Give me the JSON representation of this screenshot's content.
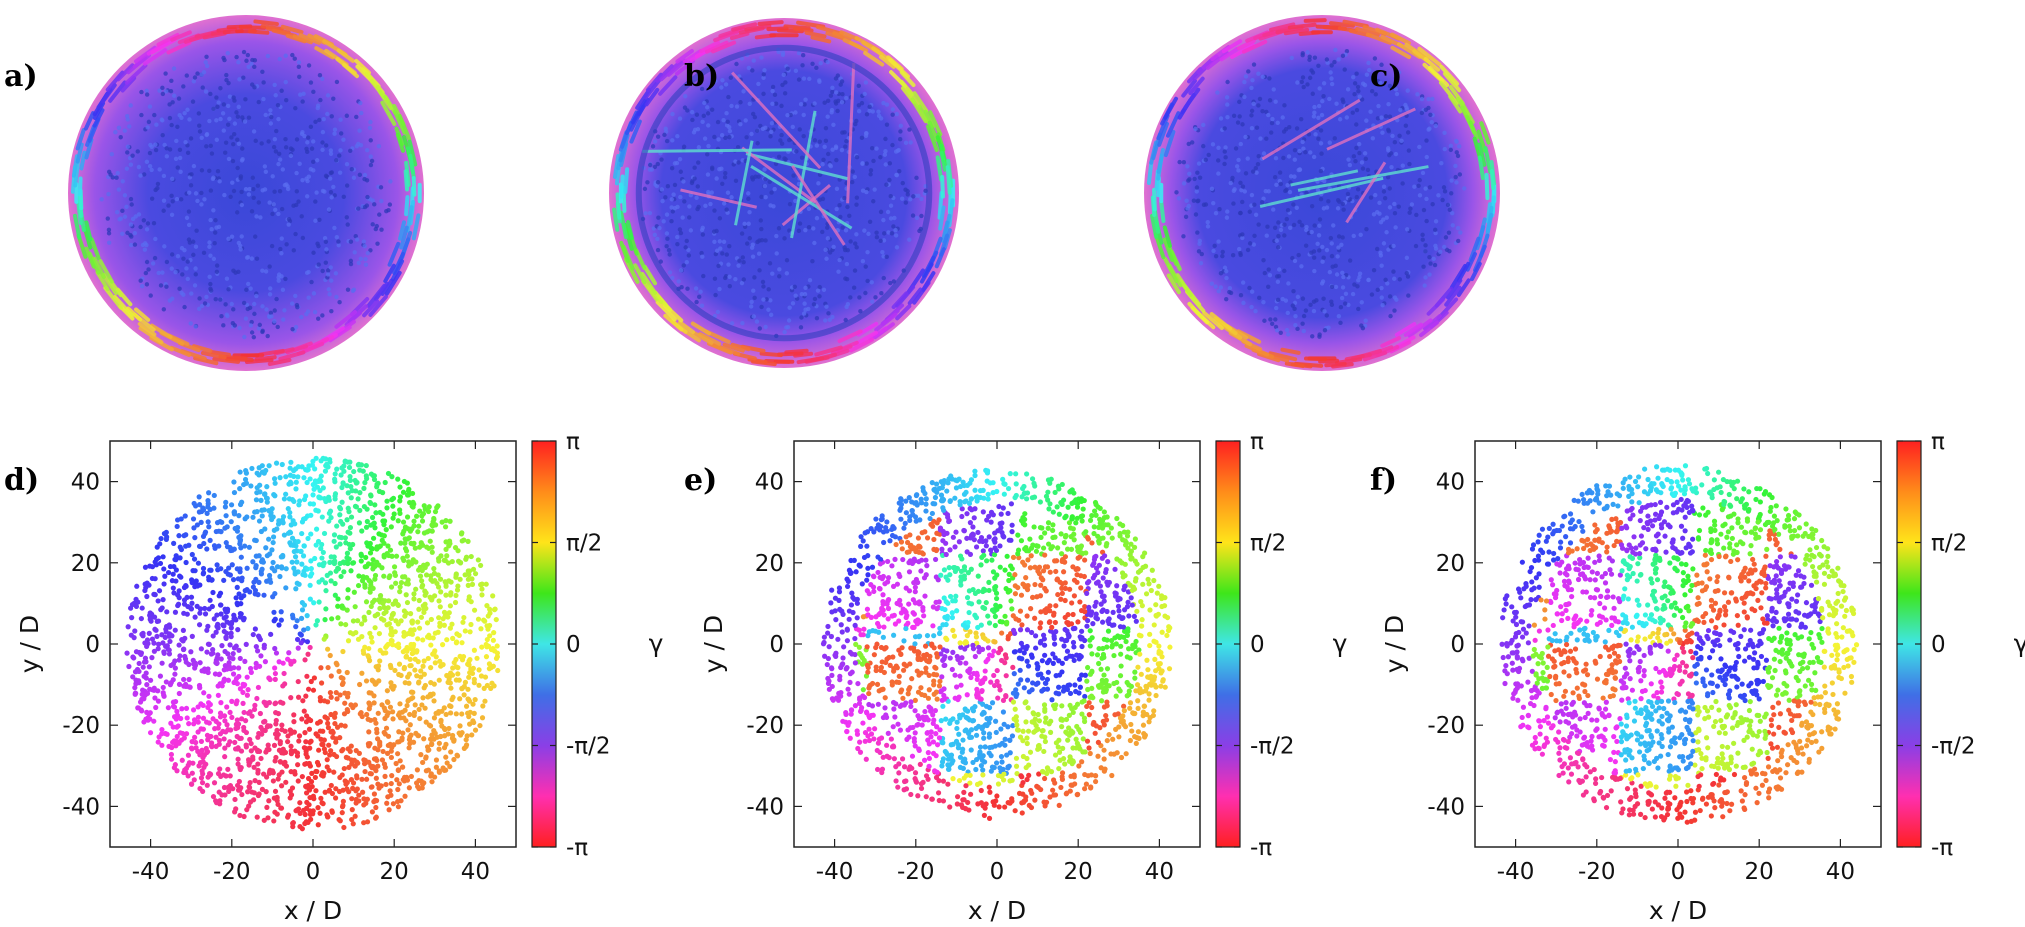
{
  "panels_top": [
    {
      "label": "a)",
      "style": "smooth"
    },
    {
      "label": "b)",
      "style": "grains-ring"
    },
    {
      "label": "c)",
      "style": "grains"
    }
  ],
  "colorbar": {
    "label": "γ",
    "ticks": [
      "π",
      "π/2",
      "0",
      "-π/2",
      "-π"
    ],
    "tick_values": [
      3.14159,
      1.5708,
      0,
      -1.5708,
      -3.14159
    ],
    "colors": [
      "#ff2020",
      "#ff8c1a",
      "#ffe41a",
      "#3ee61a",
      "#3fe6e6",
      "#3f6fe6",
      "#8a3fe6",
      "#ff2fb0",
      "#ff2020"
    ]
  },
  "chart_data": [
    {
      "type": "scatter",
      "panel": "d)",
      "style": "smooth",
      "xlabel": "x / D",
      "ylabel": "y / D",
      "xlim": [
        -50,
        50
      ],
      "ylim": [
        -50,
        50
      ],
      "xticks": [
        -40,
        -20,
        0,
        20,
        40
      ],
      "yticks": [
        -40,
        -20,
        0,
        20,
        40
      ],
      "cluster_radius": 46,
      "color_variable": "γ"
    },
    {
      "type": "scatter",
      "panel": "e)",
      "style": "grains-ring",
      "xlabel": "x / D",
      "ylabel": "y / D",
      "xlim": [
        -50,
        50
      ],
      "ylim": [
        -50,
        50
      ],
      "xticks": [
        -40,
        -20,
        0,
        20,
        40
      ],
      "yticks": [
        -40,
        -20,
        0,
        20,
        40
      ],
      "cluster_radius": 43,
      "color_variable": "γ"
    },
    {
      "type": "scatter",
      "panel": "f)",
      "style": "grains",
      "xlabel": "x / D",
      "ylabel": "y / D",
      "xlim": [
        -50,
        50
      ],
      "ylim": [
        -50,
        50
      ],
      "xticks": [
        -40,
        -20,
        0,
        20,
        40
      ],
      "yticks": [
        -40,
        -20,
        0,
        20,
        40
      ],
      "cluster_radius": 44,
      "color_variable": "γ"
    }
  ]
}
